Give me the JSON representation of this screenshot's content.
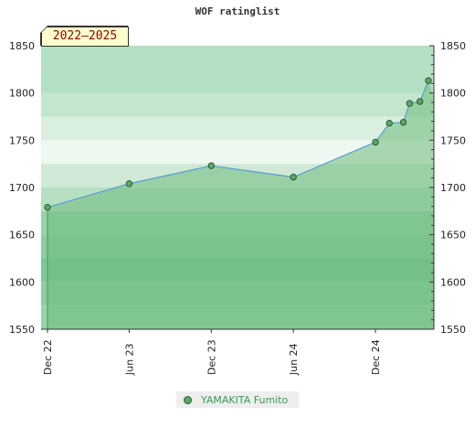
{
  "chart_data": {
    "type": "line",
    "title": "WOF ratinglist",
    "period_label": "2022–2025",
    "ylim": [
      1550,
      1850
    ],
    "y_ticks": [
      1550,
      1600,
      1650,
      1700,
      1750,
      1800,
      1850
    ],
    "x_range": [
      "2022-12-01",
      "2025-03-31"
    ],
    "x_ticks": [
      {
        "date": "2022-12-01",
        "label": "Dec 22"
      },
      {
        "date": "2023-06-01",
        "label": "Jun 23"
      },
      {
        "date": "2023-12-01",
        "label": "Dec 23"
      },
      {
        "date": "2024-06-01",
        "label": "Jun 24"
      },
      {
        "date": "2024-12-01",
        "label": "Dec 24"
      }
    ],
    "series": [
      {
        "name": "YAMAKITA Fumito",
        "color": "#5aa86a",
        "points": [
          {
            "x": "2022-12-01",
            "y": 1679
          },
          {
            "x": "2023-06-01",
            "y": 1704
          },
          {
            "x": "2023-12-01",
            "y": 1723
          },
          {
            "x": "2024-06-01",
            "y": 1711
          },
          {
            "x": "2024-12-01",
            "y": 1748
          },
          {
            "x": "2025-01-01",
            "y": 1768
          },
          {
            "x": "2025-02-01",
            "y": 1769
          },
          {
            "x": "2025-02-15",
            "y": 1789
          },
          {
            "x": "2025-03-10",
            "y": 1791
          },
          {
            "x": "2025-03-29",
            "y": 1813
          }
        ]
      }
    ],
    "colors": {
      "line": "#5b9bd5",
      "fill": "#6dbb7e",
      "point": "#5aa86a",
      "point_stroke": "#2a5a2a"
    },
    "grid": true,
    "legend_position": "bottom"
  }
}
